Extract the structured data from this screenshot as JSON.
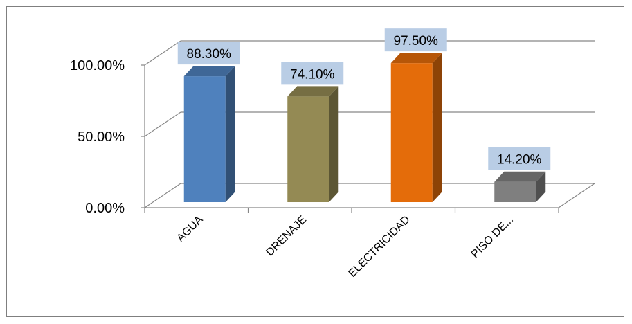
{
  "chart_data": {
    "type": "bar",
    "three_d": true,
    "title": "",
    "xlabel": "",
    "ylabel": "",
    "categories": [
      "AGUA",
      "DRENAJE",
      "ELECTRICIDAD",
      "PISO DE..."
    ],
    "values": [
      88.3,
      74.1,
      97.5,
      14.2
    ],
    "data_labels": [
      "88.30%",
      "74.10%",
      "97.50%",
      "14.20%"
    ],
    "ylim": [
      0,
      100
    ],
    "y_ticks": [
      "0.00%",
      "50.00%",
      "100.00%"
    ],
    "grid": true,
    "legend": "none",
    "colors": [
      "#4f81bd",
      "#948a54",
      "#e46c0a",
      "#7f7f7f"
    ],
    "label_box_color": "#b9cde5"
  }
}
